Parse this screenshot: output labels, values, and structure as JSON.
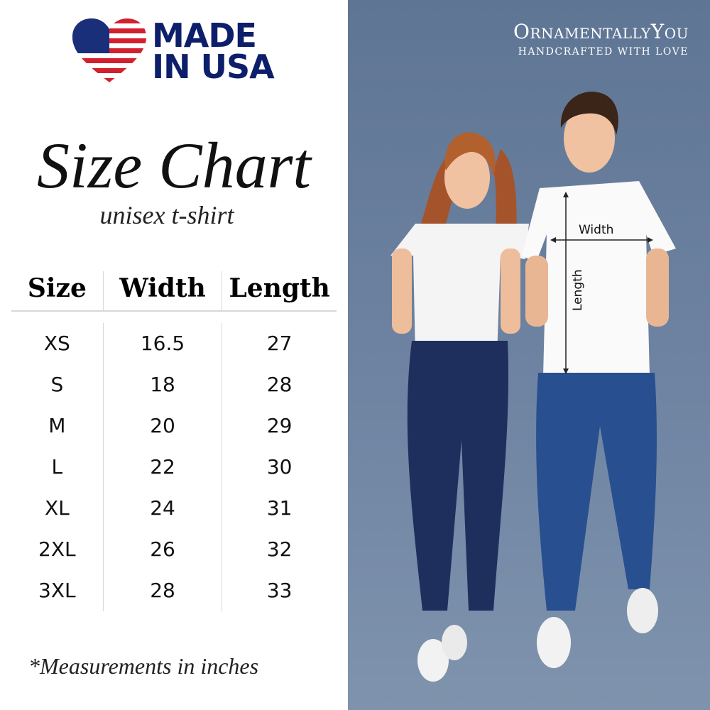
{
  "badge": {
    "line1": "MADE",
    "line2": "IN USA",
    "icon": "us-flag-heart-icon"
  },
  "title": "Size Chart",
  "subtitle": "unisex t-shirt",
  "table": {
    "headers": [
      "Size",
      "Width",
      "Length"
    ],
    "rows": [
      [
        "XS",
        "16.5",
        "27"
      ],
      [
        "S",
        "18",
        "28"
      ],
      [
        "M",
        "20",
        "29"
      ],
      [
        "L",
        "22",
        "30"
      ],
      [
        "XL",
        "24",
        "31"
      ],
      [
        "2XL",
        "26",
        "32"
      ],
      [
        "3XL",
        "28",
        "33"
      ]
    ]
  },
  "note": "*Measurements in inches",
  "brand": {
    "name": "OrnamentallyYou",
    "tagline": "HANDCRAFTED WITH LOVE"
  },
  "photo": {
    "width_label": "Width",
    "length_label": "Length"
  },
  "colors": {
    "navy": "#0d1f6b",
    "flag_red": "#d2202f",
    "background_blue": "#647a96"
  }
}
